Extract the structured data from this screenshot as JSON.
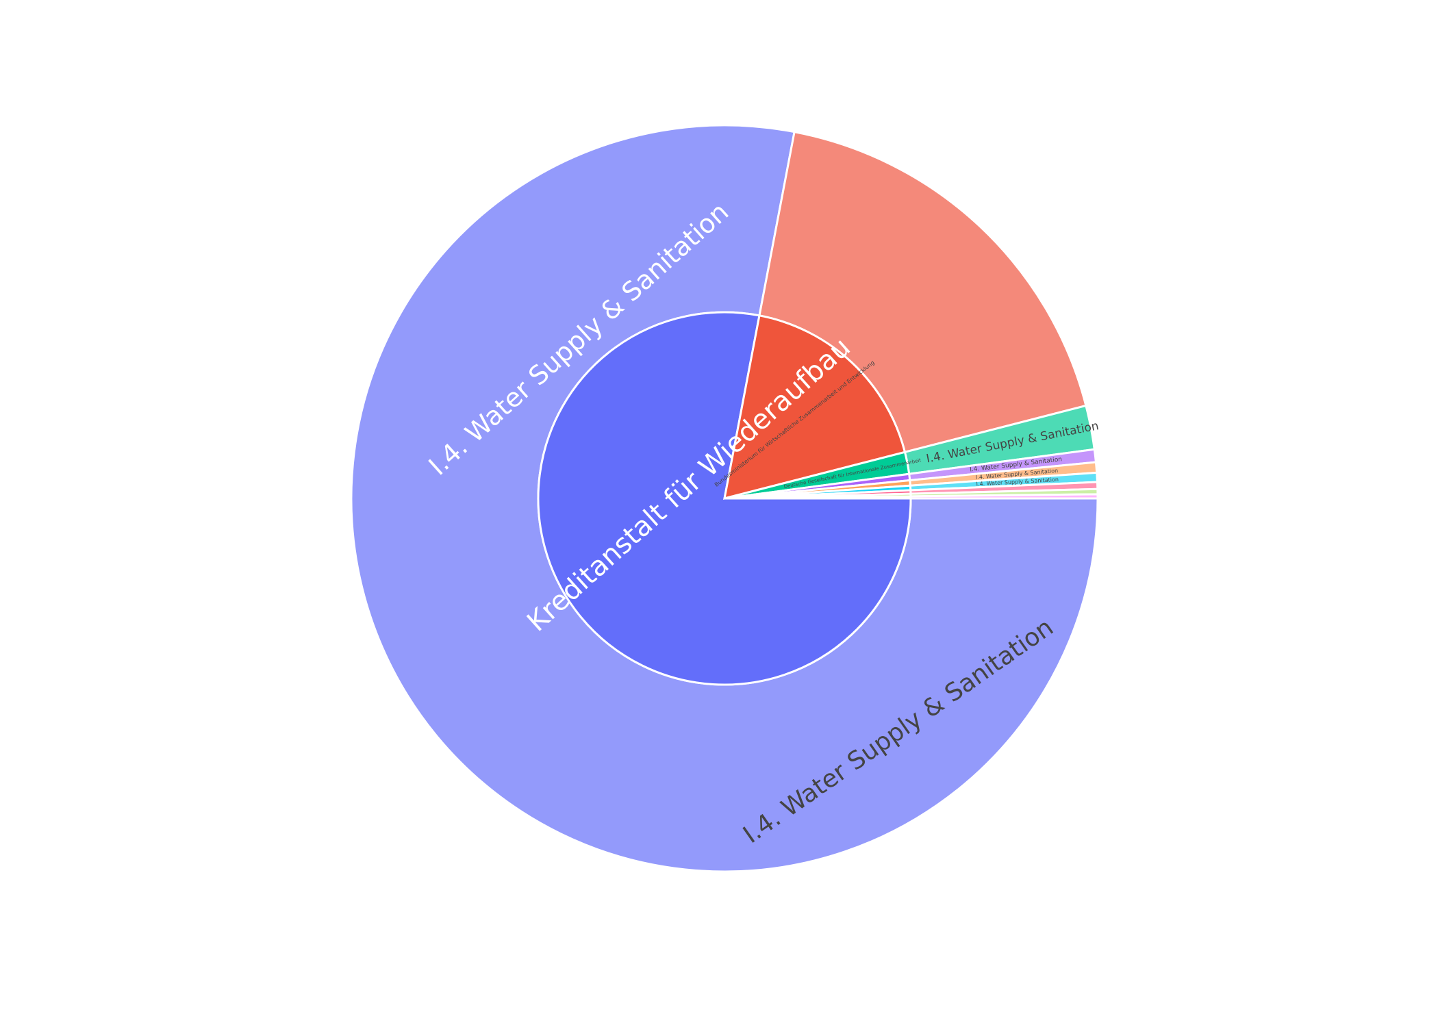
{
  "chart_data": {
    "type": "sunburst",
    "title": "",
    "sort": "descending",
    "inner": [
      {
        "label": "Kreditanstalt für Wiederaufbau",
        "value": 78.0,
        "color": "#636efa",
        "text_color": "#ffffff",
        "font_size": 40
      },
      {
        "label": "Bundesministerium für Wirtschaftliche Zusammenarbeit und Entwicklung",
        "value": 18.0,
        "color": "#ef553b",
        "text_color": "#444444",
        "font_size": 8
      },
      {
        "label": "Deutsche Gesellschaft für Internationale Zusammenarbeit",
        "value": 1.9,
        "color": "#00cc96",
        "text_color": "#444444",
        "font_size": 7
      },
      {
        "label": "",
        "value": 0.55,
        "color": "#ab63fa",
        "text_color": "#444444",
        "font_size": 5
      },
      {
        "label": "",
        "value": 0.45,
        "color": "#ffa15a",
        "text_color": "#444444",
        "font_size": 5
      },
      {
        "label": "",
        "value": 0.4,
        "color": "#19d3f3",
        "text_color": "#444444",
        "font_size": 5
      },
      {
        "label": "",
        "value": 0.3,
        "color": "#ff6692",
        "text_color": "#444444",
        "font_size": 5
      },
      {
        "label": "",
        "value": 0.22,
        "color": "#b6e880",
        "text_color": "#444444",
        "font_size": 5
      },
      {
        "label": "",
        "value": 0.18,
        "color": "#ff97ff",
        "text_color": "#444444",
        "font_size": 5
      }
    ],
    "outer": [
      {
        "parent": 0,
        "label": "I.4. Water Supply & Sanitation",
        "value": 78.0,
        "color": "#939afb",
        "text_color": "#ffffff",
        "font_size": 38
      },
      {
        "parent": 1,
        "label": "I.4. Water Supply & Sanitation",
        "value": 18.0,
        "color": "#f4897a",
        "text_color": "#444444",
        "font_size": 36
      },
      {
        "parent": 2,
        "label": "I.4. Water Supply & Sanitation",
        "value": 1.9,
        "color": "#4ddbb5",
        "text_color": "#444444",
        "font_size": 17
      },
      {
        "parent": 3,
        "label": "I.4. Water Supply & Sanitation",
        "value": 0.55,
        "color": "#c495fb",
        "text_color": "#444444",
        "font_size": 9
      },
      {
        "parent": 4,
        "label": "I.4. Water Supply & Sanitation",
        "value": 0.45,
        "color": "#ffbd8b",
        "text_color": "#444444",
        "font_size": 8
      },
      {
        "parent": 5,
        "label": "I.4. Water Supply & Sanitation",
        "value": 0.4,
        "color": "#5ee0f6",
        "text_color": "#444444",
        "font_size": 8
      },
      {
        "parent": 6,
        "label": "",
        "value": 0.3,
        "color": "#ff94b2",
        "text_color": "#444444",
        "font_size": 5
      },
      {
        "parent": 7,
        "label": "",
        "value": 0.22,
        "color": "#ccefa6",
        "text_color": "#444444",
        "font_size": 5
      },
      {
        "parent": 8,
        "label": "",
        "value": 0.18,
        "color": "#ffb6ff",
        "text_color": "#444444",
        "font_size": 5
      }
    ]
  }
}
